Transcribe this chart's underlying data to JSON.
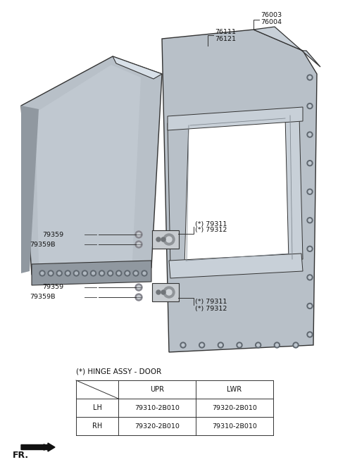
{
  "bg_color": "#ffffff",
  "line_color": "#333333",
  "part_color": "#b8c0c8",
  "part_color2": "#c8d0d8",
  "part_dark": "#9098a0",
  "table_title": "(*) HINGE ASSY - DOOR",
  "col_headers": [
    "UPR",
    "LWR"
  ],
  "row_headers": [
    "LH",
    "RH"
  ],
  "table_data": [
    [
      "79310-2B010",
      "79320-2B010"
    ],
    [
      "79320-2B010",
      "79310-2B010"
    ]
  ],
  "label_76003": "76003",
  "label_76004": "76004",
  "label_76111": "76111",
  "label_76121": "76121",
  "label_79311u": "(*) 79311",
  "label_79312u": "(*) 79312",
  "label_79311l": "(*) 79311",
  "label_79312l": "(*) 79312",
  "label_79359u": "79359",
  "label_79359Bu": "79359B",
  "label_79359l": "79359",
  "label_79359Bl": "79359B",
  "fr_label": "FR."
}
